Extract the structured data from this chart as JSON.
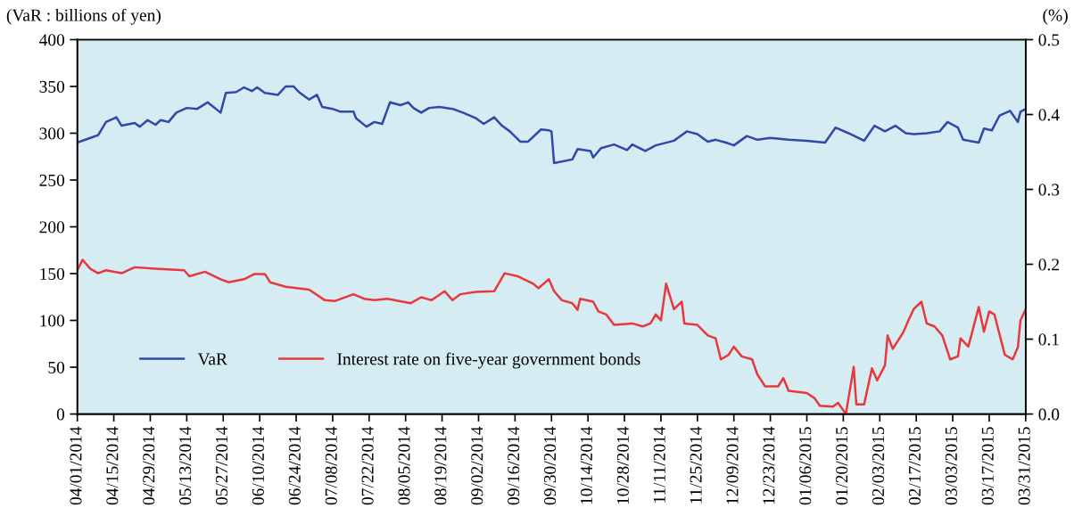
{
  "chart_data": {
    "type": "line",
    "ylabel": "(VaR : billions of yen)",
    "y2label": "(%)",
    "xlim": [
      "2014-04-01",
      "2015-03-31"
    ],
    "xticks": [
      {
        "value": "2014-04-01",
        "label": "04/01/2014"
      },
      {
        "value": "2014-04-15",
        "label": "04/15/2014"
      },
      {
        "value": "2014-04-29",
        "label": "04/29/2014"
      },
      {
        "value": "2014-05-13",
        "label": "05/13/2014"
      },
      {
        "value": "2014-05-27",
        "label": "05/27/2014"
      },
      {
        "value": "2014-06-10",
        "label": "06/10/2014"
      },
      {
        "value": "2014-06-24",
        "label": "06/24/2014"
      },
      {
        "value": "2014-07-08",
        "label": "07/08/2014"
      },
      {
        "value": "2014-07-22",
        "label": "07/22/2014"
      },
      {
        "value": "2014-08-05",
        "label": "08/05/2014"
      },
      {
        "value": "2014-08-19",
        "label": "08/19/2014"
      },
      {
        "value": "2014-09-02",
        "label": "09/02/2014"
      },
      {
        "value": "2014-09-16",
        "label": "09/16/2014"
      },
      {
        "value": "2014-09-30",
        "label": "09/30/2014"
      },
      {
        "value": "2014-10-14",
        "label": "10/14/2014"
      },
      {
        "value": "2014-10-28",
        "label": "10/28/2014"
      },
      {
        "value": "2014-11-11",
        "label": "11/11/2014"
      },
      {
        "value": "2014-11-25",
        "label": "11/25/2014"
      },
      {
        "value": "2014-12-09",
        "label": "12/09/2014"
      },
      {
        "value": "2014-12-23",
        "label": "12/23/2014"
      },
      {
        "value": "2015-01-06",
        "label": "01/06/2015"
      },
      {
        "value": "2015-01-20",
        "label": "01/20/2015"
      },
      {
        "value": "2015-02-03",
        "label": "02/03/2015"
      },
      {
        "value": "2015-02-17",
        "label": "02/17/2015"
      },
      {
        "value": "2015-03-03",
        "label": "03/03/2015"
      },
      {
        "value": "2015-03-17",
        "label": "03/17/2015"
      },
      {
        "value": "2015-03-31",
        "label": "03/31/2015"
      }
    ],
    "ylim": [
      0,
      400
    ],
    "yticks": [
      0,
      50,
      100,
      150,
      200,
      250,
      300,
      350,
      400
    ],
    "y2lim": [
      0,
      0.5
    ],
    "y2ticks": [
      {
        "value": 0,
        "label": "0.0"
      },
      0.1,
      0.2,
      0.3,
      0.4,
      0.5
    ],
    "grid": false,
    "legend": "bottom left",
    "marker": "none",
    "line_style": "solid",
    "series": [
      {
        "name": "VaR",
        "color": "#3049a8",
        "axis": "y",
        "x": [
          "2014-04-01",
          "2014-04-06",
          "2014-04-09",
          "2014-04-12",
          "2014-04-16",
          "2014-04-18",
          "2014-04-23",
          "2014-04-25",
          "2014-04-28",
          "2014-05-01",
          "2014-05-03",
          "2014-05-06",
          "2014-05-09",
          "2014-05-13",
          "2014-05-17",
          "2014-05-21",
          "2014-05-26",
          "2014-05-28",
          "2014-06-01",
          "2014-06-04",
          "2014-06-07",
          "2014-06-09",
          "2014-06-12",
          "2014-06-17",
          "2014-06-20",
          "2014-06-23",
          "2014-06-25",
          "2014-06-29",
          "2014-07-02",
          "2014-07-04",
          "2014-07-08",
          "2014-07-11",
          "2014-07-16",
          "2014-07-17",
          "2014-07-21",
          "2014-07-24",
          "2014-07-27",
          "2014-07-30",
          "2014-08-03",
          "2014-08-06",
          "2014-08-08",
          "2014-08-11",
          "2014-08-14",
          "2014-08-18",
          "2014-08-23",
          "2014-08-27",
          "2014-09-01",
          "2014-09-04",
          "2014-09-08",
          "2014-09-11",
          "2014-09-14",
          "2014-09-18",
          "2014-09-21",
          "2014-09-26",
          "2014-09-29",
          "2014-09-30",
          "2014-10-01",
          "2014-10-08",
          "2014-10-10",
          "2014-10-15",
          "2014-10-16",
          "2014-10-19",
          "2014-10-24",
          "2014-10-29",
          "2014-10-31",
          "2014-11-05",
          "2014-11-09",
          "2014-11-16",
          "2014-11-21",
          "2014-11-25",
          "2014-11-29",
          "2014-12-02",
          "2014-12-06",
          "2014-12-09",
          "2014-12-14",
          "2014-12-18",
          "2014-12-23",
          "2014-12-30",
          "2015-01-06",
          "2015-01-13",
          "2015-01-17",
          "2015-01-22",
          "2015-01-28",
          "2015-02-01",
          "2015-02-05",
          "2015-02-09",
          "2015-02-13",
          "2015-02-16",
          "2015-02-21",
          "2015-02-26",
          "2015-03-01",
          "2015-03-05",
          "2015-03-07",
          "2015-03-13",
          "2015-03-15",
          "2015-03-18",
          "2015-03-21",
          "2015-03-25",
          "2015-03-28",
          "2015-03-29",
          "2015-03-31"
        ],
        "values": [
          290,
          295,
          298,
          312,
          317,
          308,
          311,
          307,
          314,
          309,
          314,
          312,
          322,
          327,
          326,
          333,
          322,
          343,
          344,
          349,
          345,
          349,
          343,
          341,
          350,
          350,
          344,
          336,
          341,
          328,
          326,
          323,
          323,
          316,
          307,
          312,
          310,
          333,
          330,
          333,
          327,
          322,
          327,
          328,
          326,
          322,
          316,
          310,
          317,
          308,
          302,
          291,
          291,
          304,
          303,
          302,
          268,
          272,
          283,
          281,
          274,
          284,
          288,
          282,
          288,
          281,
          287,
          292,
          302,
          299,
          291,
          293,
          290,
          287,
          297,
          293,
          295,
          293,
          292,
          290,
          306,
          300,
          292,
          308,
          302,
          308,
          300,
          299,
          300,
          302,
          312,
          306,
          293,
          290,
          305,
          303,
          319,
          324,
          312,
          323,
          326
        ]
      },
      {
        "name": "Interest rate on five-year government bonds",
        "color": "#e8383d",
        "axis": "y2",
        "x": [
          "2014-04-01",
          "2014-04-03",
          "2014-04-06",
          "2014-04-09",
          "2014-04-12",
          "2014-04-18",
          "2014-04-23",
          "2014-05-01",
          "2014-05-12",
          "2014-05-14",
          "2014-05-20",
          "2014-05-26",
          "2014-05-29",
          "2014-06-04",
          "2014-06-08",
          "2014-06-12",
          "2014-06-14",
          "2014-06-20",
          "2014-06-29",
          "2014-07-05",
          "2014-07-09",
          "2014-07-16",
          "2014-07-20",
          "2014-07-24",
          "2014-07-29",
          "2014-08-07",
          "2014-08-11",
          "2014-08-15",
          "2014-08-20",
          "2014-08-23",
          "2014-08-26",
          "2014-09-01",
          "2014-09-08",
          "2014-09-12",
          "2014-09-17",
          "2014-09-23",
          "2014-09-25",
          "2014-09-29",
          "2014-10-01",
          "2014-10-04",
          "2014-10-08",
          "2014-10-10",
          "2014-10-11",
          "2014-10-16",
          "2014-10-18",
          "2014-10-21",
          "2014-10-24",
          "2014-10-31",
          "2014-11-04",
          "2014-11-07",
          "2014-11-09",
          "2014-11-11",
          "2014-11-13",
          "2014-11-16",
          "2014-11-19",
          "2014-11-20",
          "2014-11-25",
          "2014-11-29",
          "2014-12-02",
          "2014-12-04",
          "2014-12-07",
          "2014-12-09",
          "2014-12-12",
          "2014-12-16",
          "2014-12-18",
          "2014-12-21",
          "2014-12-26",
          "2014-12-28",
          "2014-12-30",
          "2015-01-06",
          "2015-01-09",
          "2015-01-11",
          "2015-01-16",
          "2015-01-18",
          "2015-01-21",
          "2015-01-24",
          "2015-01-25",
          "2015-01-28",
          "2015-01-31",
          "2015-02-02",
          "2015-02-05",
          "2015-02-06",
          "2015-02-08",
          "2015-02-12",
          "2015-02-14",
          "2015-02-16",
          "2015-02-19",
          "2015-02-21",
          "2015-02-24",
          "2015-02-27",
          "2015-03-02",
          "2015-03-05",
          "2015-03-06",
          "2015-03-09",
          "2015-03-13",
          "2015-03-15",
          "2015-03-17",
          "2015-03-19",
          "2015-03-23",
          "2015-03-26",
          "2015-03-28",
          "2015-03-29",
          "2015-03-31"
        ],
        "values": [
          0.192,
          0.206,
          0.194,
          0.188,
          0.192,
          0.188,
          0.196,
          0.194,
          0.192,
          0.184,
          0.19,
          0.18,
          0.176,
          0.18,
          0.187,
          0.187,
          0.176,
          0.17,
          0.166,
          0.152,
          0.151,
          0.16,
          0.154,
          0.152,
          0.154,
          0.148,
          0.156,
          0.152,
          0.164,
          0.152,
          0.16,
          0.163,
          0.164,
          0.188,
          0.184,
          0.174,
          0.168,
          0.18,
          0.164,
          0.152,
          0.148,
          0.139,
          0.154,
          0.15,
          0.137,
          0.133,
          0.119,
          0.121,
          0.117,
          0.121,
          0.133,
          0.125,
          0.174,
          0.14,
          0.15,
          0.121,
          0.119,
          0.105,
          0.101,
          0.073,
          0.079,
          0.09,
          0.077,
          0.073,
          0.053,
          0.037,
          0.037,
          0.048,
          0.031,
          0.028,
          0.021,
          0.011,
          0.01,
          0.015,
          0.0,
          0.063,
          0.013,
          0.013,
          0.061,
          0.045,
          0.065,
          0.105,
          0.087,
          0.109,
          0.125,
          0.14,
          0.15,
          0.121,
          0.117,
          0.105,
          0.073,
          0.077,
          0.101,
          0.09,
          0.143,
          0.11,
          0.137,
          0.133,
          0.079,
          0.073,
          0.089,
          0.125,
          0.14
        ]
      }
    ]
  }
}
